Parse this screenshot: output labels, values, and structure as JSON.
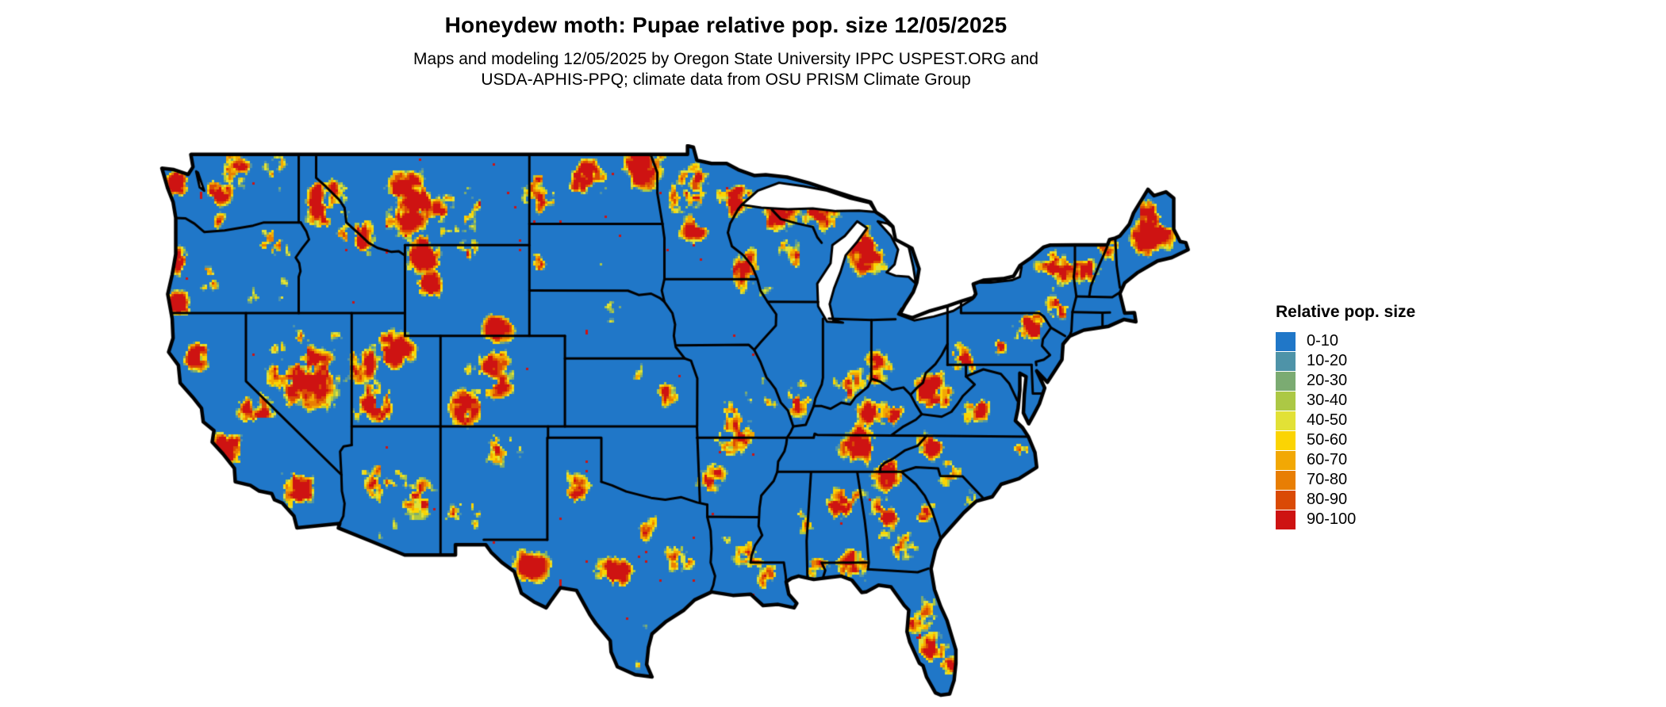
{
  "page": {
    "background": "#ffffff"
  },
  "header": {
    "title": "Honeydew moth: Pupae relative pop. size 12/05/2025",
    "subtitle_line1": "Maps and modeling 12/05/2025 by Oregon State University IPPC USPEST.ORG and",
    "subtitle_line2": "USDA-APHIS-PPQ; climate data from OSU PRISM Climate Group"
  },
  "map": {
    "region_label": "Continental United States raster map",
    "base_color": "#2077C8",
    "boundary_color": "#000000",
    "water_color": "#ffffff"
  },
  "legend": {
    "title": "Relative pop. size",
    "items": [
      {
        "label": "0-10",
        "color": "#2077C8"
      },
      {
        "label": "10-20",
        "color": "#4E93A8"
      },
      {
        "label": "20-30",
        "color": "#7BAB72"
      },
      {
        "label": "30-40",
        "color": "#ACC845"
      },
      {
        "label": "40-50",
        "color": "#E2E136"
      },
      {
        "label": "50-60",
        "color": "#FBD403"
      },
      {
        "label": "60-70",
        "color": "#F2A804"
      },
      {
        "label": "70-80",
        "color": "#E87E04"
      },
      {
        "label": "80-90",
        "color": "#DA4A05"
      },
      {
        "label": "90-100",
        "color": "#CE1312"
      }
    ]
  }
}
